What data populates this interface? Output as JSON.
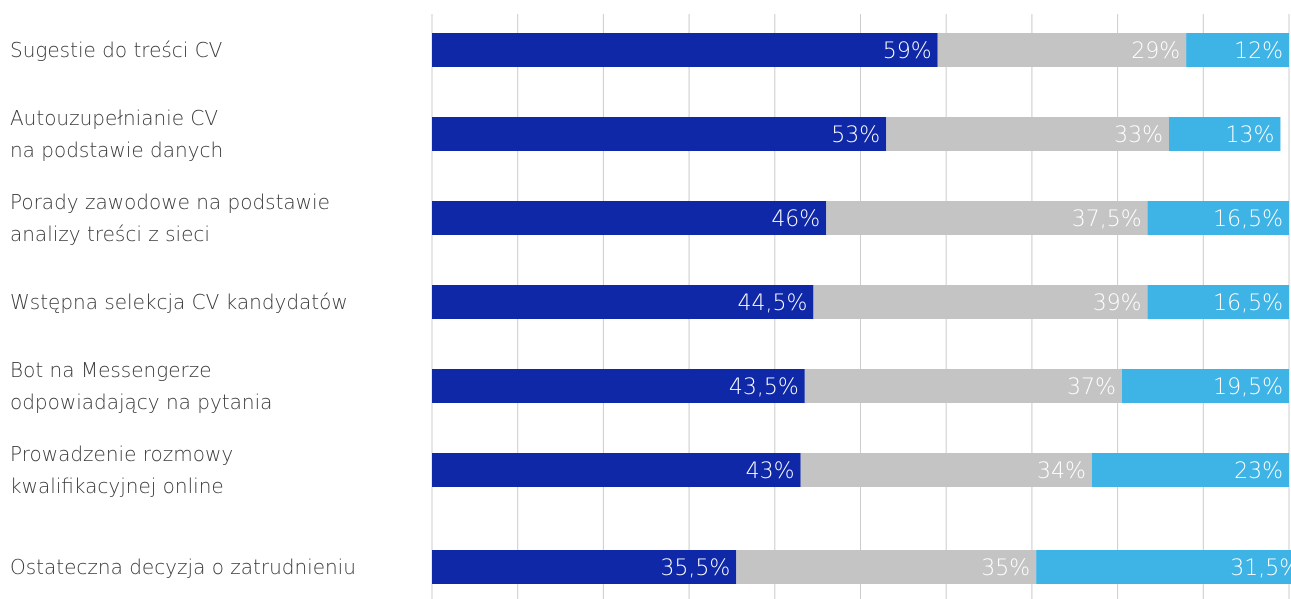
{
  "chart_data": {
    "type": "bar",
    "orientation": "horizontal",
    "stacked": true,
    "categories": [
      "Sugestie do treści CV",
      "Autouzupełnianie CV\nna podstawie danych",
      "Porady zawodowe na podstawie\nanalizy treści z sieci",
      "Wstępna selekcja CV kandydatów",
      "Bot na Messengerze\nodpowiadający na pytania",
      "Prowadzenie rozmowy\nkwalifikacyjnej online",
      "Ostateczna decyzja o zatrudnieniu"
    ],
    "series": [
      {
        "color": "#0f28a8",
        "values": [
          59,
          53,
          46,
          44.5,
          43.5,
          43,
          35.5
        ],
        "labels": [
          "59%",
          "53%",
          "46%",
          "44,5%",
          "43,5%",
          "43%",
          "35,5%"
        ]
      },
      {
        "color": "#c4c4c4",
        "values": [
          29,
          33,
          37.5,
          39,
          37,
          34,
          35
        ],
        "labels": [
          "29%",
          "33%",
          "37,5%",
          "39%",
          "37%",
          "34%",
          "35%"
        ]
      },
      {
        "color": "#3db3e6",
        "values": [
          12,
          13,
          16.5,
          16.5,
          19.5,
          23,
          31.5
        ],
        "labels": [
          "12%",
          "13%",
          "16,5%",
          "16,5%",
          "19,5%",
          "23%",
          "31,5%"
        ]
      }
    ],
    "xlim": [
      0,
      100
    ],
    "grid": true,
    "gridline_color": "#cccccc"
  }
}
